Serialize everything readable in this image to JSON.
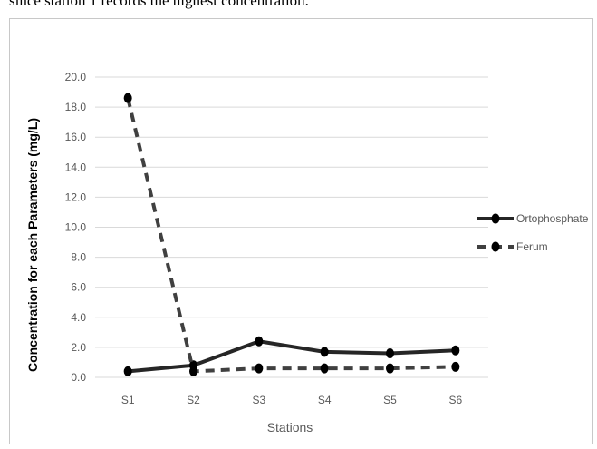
{
  "page": {
    "top_text": "since station 1 records the highest concentration."
  },
  "chart_data": {
    "type": "line",
    "categories": [
      "S1",
      "S2",
      "S3",
      "S4",
      "S5",
      "S6"
    ],
    "series": [
      {
        "name": "Ortophosphate",
        "values": [
          0.4,
          0.8,
          2.4,
          1.7,
          1.6,
          1.8
        ],
        "color": "#262626",
        "dash": "solid"
      },
      {
        "name": "Ferum",
        "values": [
          18.6,
          0.4,
          0.6,
          0.6,
          0.6,
          0.7
        ],
        "color": "#404040",
        "dash": "dashed"
      }
    ],
    "yticks": [
      "0.0",
      "2.0",
      "4.0",
      "6.0",
      "8.0",
      "10.0",
      "12.0",
      "14.0",
      "16.0",
      "18.0",
      "20.0"
    ],
    "ylim": [
      0,
      20
    ],
    "xlabel": "Stations",
    "ylabel": "Concentration for each Parameters (mg/L)",
    "grid": true,
    "legend": "right"
  }
}
